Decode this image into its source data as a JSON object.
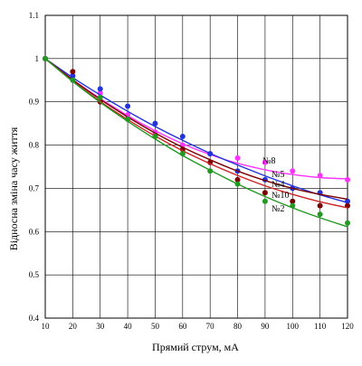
{
  "chart_data": {
    "type": "scatter",
    "title": "",
    "xlabel": "Прямий струм, мА",
    "ylabel": "Відносна зміна часу життя",
    "xlim": [
      10,
      120
    ],
    "ylim": [
      0.4,
      1.1
    ],
    "x_ticks": [
      "10",
      "20",
      "30",
      "40",
      "50",
      "60",
      "70",
      "80",
      "90",
      "100",
      "110",
      "120"
    ],
    "y_ticks": [
      "0.4",
      "0.5",
      "0.6",
      "0.7",
      "0.8",
      "0.9",
      "1",
      "1.1"
    ],
    "grid": true,
    "legend": "inline labels at right end of curves",
    "series": [
      {
        "name": "№8",
        "color": "#ff33ff",
        "x": [
          10,
          20,
          30,
          40,
          50,
          60,
          70,
          80,
          90,
          100,
          110,
          120
        ],
        "y": [
          1.0,
          0.96,
          0.92,
          0.87,
          0.83,
          0.8,
          0.78,
          0.77,
          0.76,
          0.74,
          0.73,
          0.72
        ],
        "fit": [
          1.0,
          0.951,
          0.908,
          0.868,
          0.833,
          0.803,
          0.778,
          0.758,
          0.743,
          0.732,
          0.725,
          0.722
        ]
      },
      {
        "name": "№5",
        "color": "#2233dd",
        "x": [
          10,
          20,
          30,
          40,
          50,
          60,
          70,
          80,
          90,
          100,
          110,
          120
        ],
        "y": [
          1.0,
          0.96,
          0.93,
          0.89,
          0.85,
          0.82,
          0.78,
          0.74,
          0.72,
          0.7,
          0.69,
          0.67
        ],
        "fit": [
          1.0,
          0.956,
          0.916,
          0.878,
          0.843,
          0.811,
          0.781,
          0.754,
          0.729,
          0.706,
          0.685,
          0.667
        ]
      },
      {
        "name": "№4",
        "color": "#7a0000",
        "x": [
          10,
          20,
          30,
          40,
          50,
          60,
          70,
          80,
          90,
          100,
          110,
          120
        ],
        "y": [
          1.0,
          0.97,
          0.9,
          0.86,
          0.82,
          0.79,
          0.76,
          0.72,
          0.69,
          0.67,
          0.66,
          0.66
        ],
        "fit": [
          1.0,
          0.951,
          0.906,
          0.865,
          0.828,
          0.795,
          0.766,
          0.74,
          0.718,
          0.7,
          0.686,
          0.675
        ]
      },
      {
        "name": "№10",
        "color": "#cc2222",
        "x": [],
        "y": [],
        "fit": [
          1.0,
          0.948,
          0.901,
          0.859,
          0.821,
          0.787,
          0.757,
          0.73,
          0.706,
          0.686,
          0.669,
          0.655
        ]
      },
      {
        "name": "№2",
        "color": "#229922",
        "x": [
          10,
          20,
          30,
          40,
          50,
          60,
          70,
          80,
          90,
          100,
          110,
          120
        ],
        "y": [
          1.0,
          0.95,
          0.91,
          0.86,
          0.82,
          0.78,
          0.74,
          0.71,
          0.67,
          0.66,
          0.64,
          0.62
        ],
        "fit": [
          1.0,
          0.947,
          0.899,
          0.855,
          0.814,
          0.776,
          0.742,
          0.71,
          0.681,
          0.655,
          0.632,
          0.611
        ]
      }
    ]
  }
}
